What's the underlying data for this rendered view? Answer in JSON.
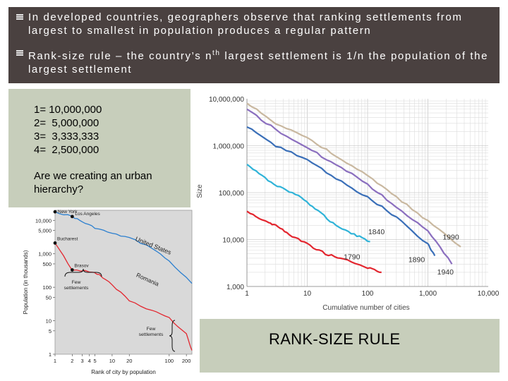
{
  "slide": {
    "bullets": [
      {
        "text": "In developed countries, geographers observe that ranking settlements from largest to smallest in population produces a regular pattern"
      },
      {
        "text_before": "Rank-size rule – the country’s n",
        "superscript": "th",
        "text_after": " largest settlement is 1/n the population of the largest settlement"
      }
    ],
    "rank_list": [
      "1= 10,000,000",
      "2=  5,000,000",
      "3=  3,333,333",
      "4=  2,500,000"
    ],
    "question": "Are we creating an urban hierarchy?",
    "caption": "RANK-SIZE RULE"
  },
  "colors": {
    "header_bg": "#4a4140",
    "panel_bg": "#c7cebb",
    "bullet_marker": "#e0e0e0"
  },
  "icons": {
    "bullet": "square-bullet-icon"
  },
  "chart_data": [
    {
      "type": "line",
      "ylabel": "Population (in thousands)",
      "xlabel": "Rank of city by population",
      "x_scale": "log",
      "y_scale": "log",
      "x_ticks": [
        "1",
        "2",
        "3",
        "4",
        "5",
        "10",
        "20",
        "100",
        "200"
      ],
      "y_ticks": [
        "10,000",
        "5,000",
        "1,000",
        "500",
        "100",
        "50",
        "10",
        "5",
        "1"
      ],
      "xlim": [
        1,
        250
      ],
      "ylim": [
        1,
        20000
      ],
      "series": [
        {
          "name": "United States",
          "color": "#2b7fcf",
          "points": [
            [
              1,
              18000
            ],
            [
              2,
              13000
            ],
            [
              3,
              9000
            ],
            [
              5,
              6000
            ],
            [
              10,
              4000
            ],
            [
              20,
              3000
            ],
            [
              50,
              1500
            ],
            [
              100,
              600
            ],
            [
              250,
              130
            ]
          ]
        },
        {
          "name": "Romania",
          "color": "#e3262f",
          "points": [
            [
              1,
              2100
            ],
            [
              2,
              330
            ],
            [
              4,
              300
            ],
            [
              6,
              230
            ],
            [
              10,
              120
            ],
            [
              20,
              40
            ],
            [
              50,
              20
            ],
            [
              100,
              12
            ],
            [
              200,
              4
            ],
            [
              250,
              1.3
            ]
          ]
        }
      ],
      "annotations": [
        "New York",
        "Los Angeles",
        "Bucharest",
        "Brasov",
        "Few settlements",
        "Few settlements"
      ]
    },
    {
      "type": "line",
      "ylabel": "Size",
      "xlabel": "Cumulative number of cities",
      "x_scale": "log",
      "y_scale": "log",
      "x_ticks": [
        "1",
        "10",
        "100",
        "1,000",
        "10,000"
      ],
      "y_ticks": [
        "10,000,000",
        "1,000,000",
        "100,000",
        "10,000",
        "1,000"
      ],
      "xlim": [
        1,
        10000
      ],
      "ylim": [
        1000,
        10000000
      ],
      "series": [
        {
          "name": "1840",
          "color": "#2fb3d8",
          "points": [
            [
              1,
              400000
            ],
            [
              2,
              200000
            ],
            [
              4,
              120000
            ],
            [
              8,
              80000
            ],
            [
              15,
              40000
            ],
            [
              30,
              20000
            ],
            [
              60,
              13000
            ],
            [
              110,
              9000
            ]
          ]
        },
        {
          "name": "1790",
          "color": "#e3262f",
          "points": [
            [
              1,
              40000
            ],
            [
              2,
              25000
            ],
            [
              3,
              20000
            ],
            [
              5,
              13000
            ],
            [
              10,
              8000
            ],
            [
              20,
              5000
            ],
            [
              40,
              3800
            ],
            [
              100,
              2500
            ],
            [
              170,
              2000
            ]
          ]
        },
        {
          "name": "1890",
          "color": "#3a6fb8",
          "points": [
            [
              1,
              2500000
            ],
            [
              3,
              1000000
            ],
            [
              10,
              500000
            ],
            [
              30,
              200000
            ],
            [
              100,
              80000
            ],
            [
              300,
              30000
            ],
            [
              1000,
              8000
            ],
            [
              1300,
              4500
            ]
          ]
        },
        {
          "name": "1940",
          "color": "#8b6fbf",
          "points": [
            [
              1,
              6000000
            ],
            [
              3,
              2200000
            ],
            [
              10,
              900000
            ],
            [
              30,
              400000
            ],
            [
              100,
              150000
            ],
            [
              300,
              50000
            ],
            [
              1000,
              15000
            ],
            [
              2500,
              3000
            ]
          ]
        },
        {
          "name": "1990",
          "color": "#c9b8a0",
          "points": [
            [
              1,
              8000000
            ],
            [
              3,
              3000000
            ],
            [
              10,
              1500000
            ],
            [
              30,
              600000
            ],
            [
              100,
              230000
            ],
            [
              300,
              80000
            ],
            [
              1000,
              25000
            ],
            [
              3500,
              7000
            ]
          ]
        }
      ]
    }
  ]
}
